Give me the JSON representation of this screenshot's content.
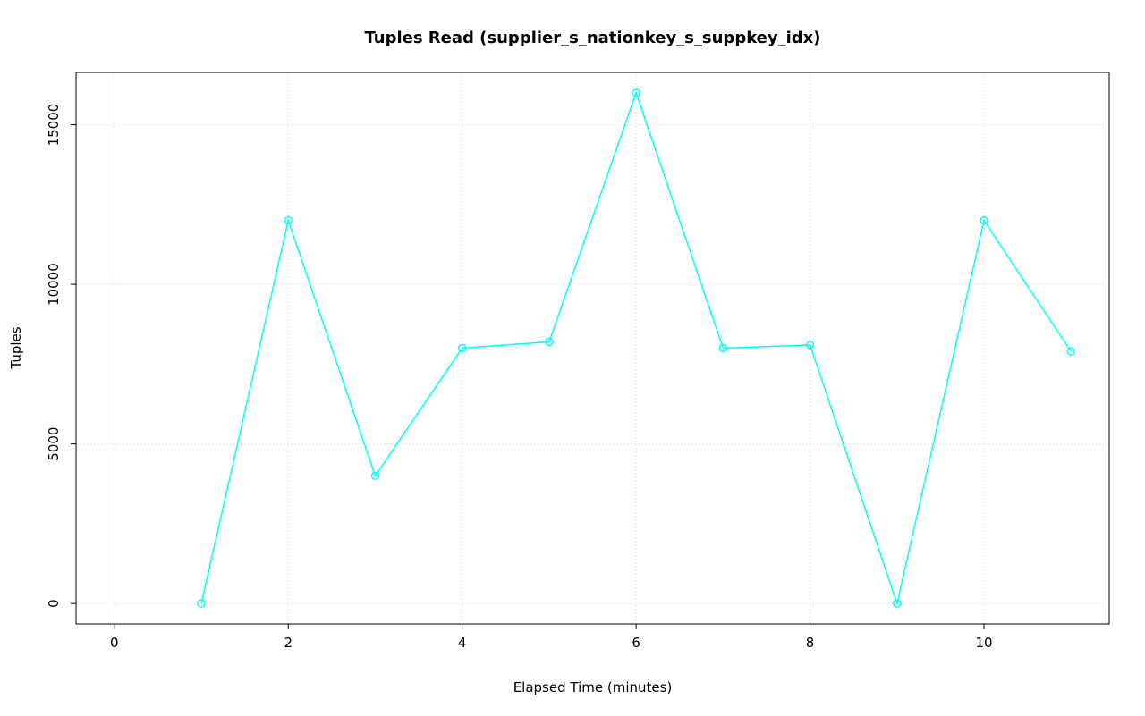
{
  "chart_data": {
    "type": "line",
    "title": "Tuples Read (supplier_s_nationkey_s_suppkey_idx)",
    "xlabel": "Elapsed Time (minutes)",
    "ylabel": "Tuples",
    "x": [
      1,
      2,
      3,
      4,
      5,
      6,
      7,
      8,
      9,
      10,
      11
    ],
    "values": [
      0,
      12000,
      4000,
      8000,
      8200,
      16000,
      8000,
      8100,
      0,
      12000,
      7900
    ],
    "xticks": [
      0,
      2,
      4,
      6,
      8,
      10
    ],
    "yticks": [
      0,
      5000,
      10000,
      15000
    ],
    "xlim": [
      -0.44,
      11.44
    ],
    "ylim": [
      -640,
      16640
    ],
    "grid": true,
    "grid_style": "dotted",
    "series_color": "#00FFFF",
    "grid_color": "#d3d3d3",
    "axis_color": "#000000",
    "marker": "open-circle",
    "legend": "none"
  }
}
